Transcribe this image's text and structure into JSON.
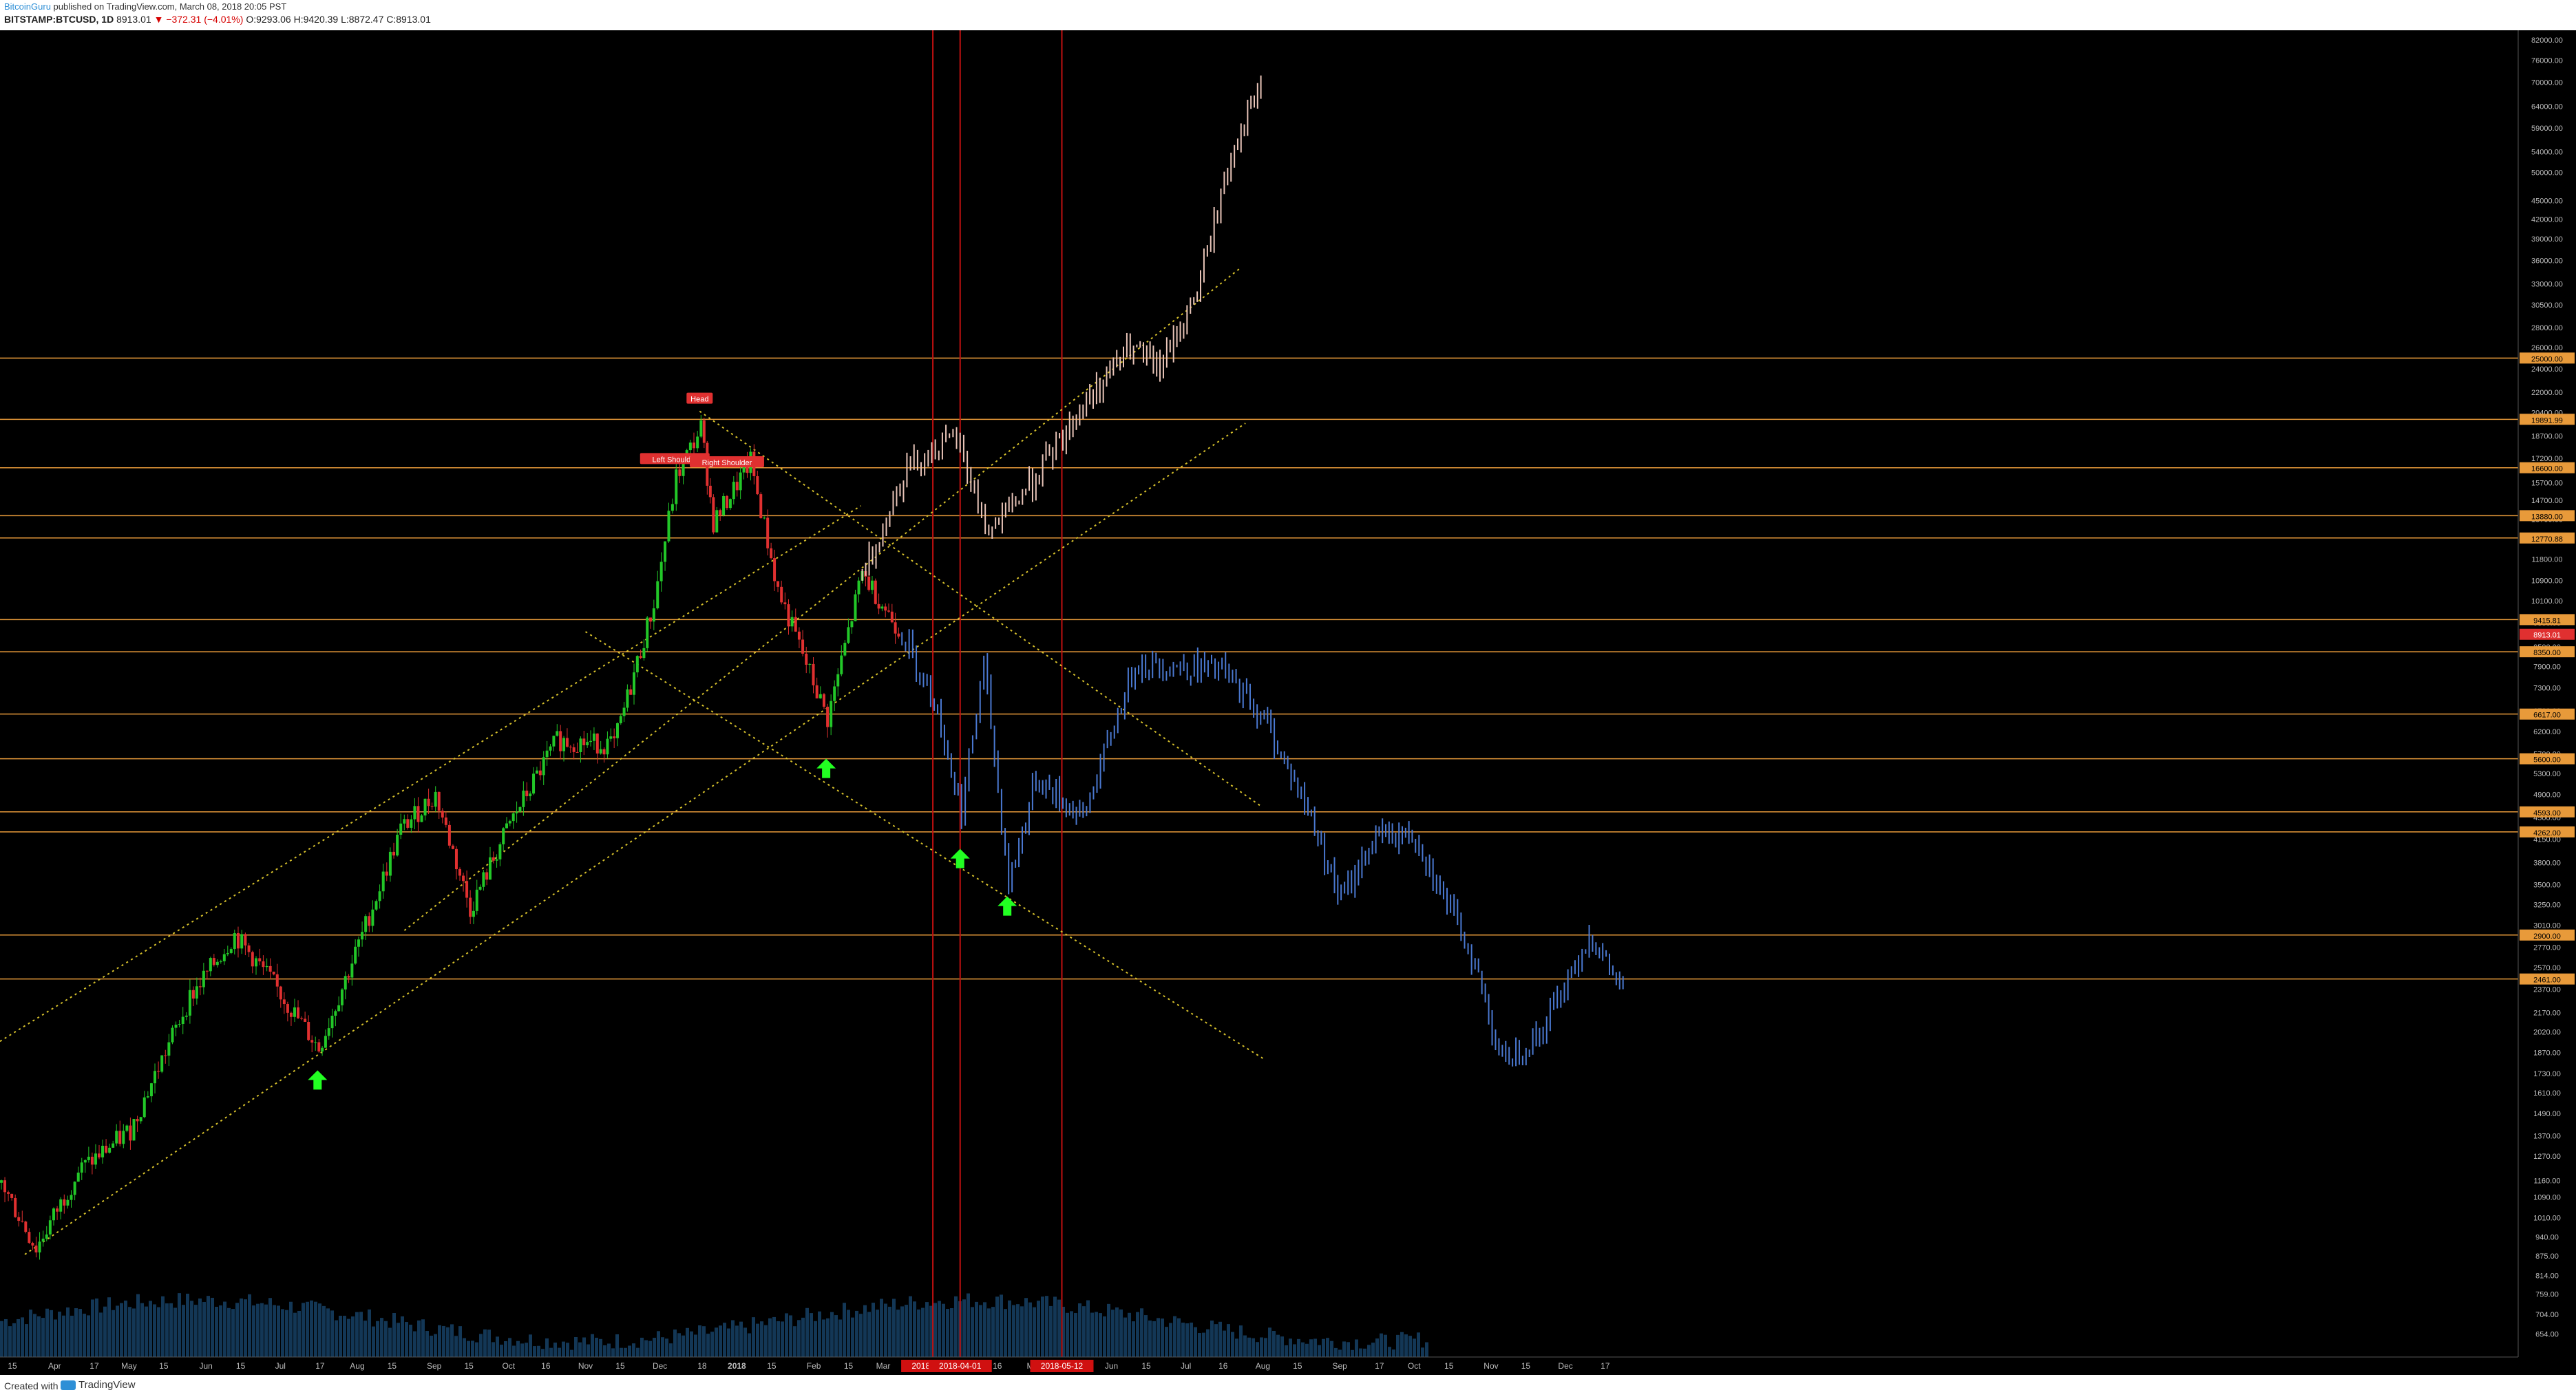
{
  "header": {
    "author": "BitcoinGuru",
    "published": " published on TradingView.com, March 08, 2018 20:05 PST",
    "symbol": "BITSTAMP:BTCUSD, 1D",
    "last": "8913.01",
    "change": "−372.31 (−4.01%)",
    "ohlc": "O:9293.06 H:9420.39 L:8872.47 C:8913.01"
  },
  "footer": {
    "created_with": "Created with",
    "brand": "TradingView"
  },
  "colors": {
    "up": "#22c728",
    "down": "#e03030",
    "projection_down": "#4a78d0",
    "projection_up": "#e8c4b8",
    "hline": "#e89a3a",
    "vline": "#c01010",
    "trend": "#d8c22c",
    "arrow": "#22ff22",
    "bands": "#2a8a7a",
    "ma": "#c82020",
    "volume": "#1b4f7a"
  },
  "chart_data": {
    "type": "line",
    "title": "BITSTAMP:BTCUSD, 1D",
    "yscale": "log",
    "ylim": [
      600,
      85000
    ],
    "xrange": [
      "2017-03-10",
      "2019-12-20"
    ],
    "x_ticks": [
      {
        "label": "15",
        "date": "2017-03-15"
      },
      {
        "label": "Apr",
        "date": "2017-04-01"
      },
      {
        "label": "17",
        "date": "2017-04-17"
      },
      {
        "label": "May",
        "date": "2017-05-01"
      },
      {
        "label": "15",
        "date": "2017-05-15"
      },
      {
        "label": "Jun",
        "date": "2017-06-01"
      },
      {
        "label": "15",
        "date": "2017-06-15"
      },
      {
        "label": "Jul",
        "date": "2017-07-01"
      },
      {
        "label": "17",
        "date": "2017-07-17"
      },
      {
        "label": "Aug",
        "date": "2017-08-01"
      },
      {
        "label": "15",
        "date": "2017-08-15"
      },
      {
        "label": "Sep",
        "date": "2017-09-01"
      },
      {
        "label": "15",
        "date": "2017-09-15"
      },
      {
        "label": "Oct",
        "date": "2017-10-01"
      },
      {
        "label": "16",
        "date": "2017-10-16"
      },
      {
        "label": "Nov",
        "date": "2017-11-01"
      },
      {
        "label": "15",
        "date": "2017-11-15"
      },
      {
        "label": "Dec",
        "date": "2017-12-01"
      },
      {
        "label": "18",
        "date": "2017-12-18"
      },
      {
        "label": "2018",
        "date": "2018-01-01"
      },
      {
        "label": "15",
        "date": "2018-01-15"
      },
      {
        "label": "Feb",
        "date": "2018-02-01"
      },
      {
        "label": "15",
        "date": "2018-02-15"
      },
      {
        "label": "Mar",
        "date": "2018-03-01"
      },
      {
        "label": "16",
        "date": "2018-04-16"
      },
      {
        "label": "May",
        "date": "2018-05-01"
      },
      {
        "label": "Jun",
        "date": "2018-06-01"
      },
      {
        "label": "15",
        "date": "2018-06-15"
      },
      {
        "label": "Jul",
        "date": "2018-07-01"
      },
      {
        "label": "16",
        "date": "2018-07-16"
      },
      {
        "label": "Aug",
        "date": "2018-08-01"
      },
      {
        "label": "15",
        "date": "2018-08-15"
      },
      {
        "label": "Sep",
        "date": "2018-09-01"
      },
      {
        "label": "17",
        "date": "2018-09-17"
      },
      {
        "label": "Oct",
        "date": "2018-10-01"
      },
      {
        "label": "15",
        "date": "2018-10-15"
      },
      {
        "label": "Nov",
        "date": "2018-11-01"
      },
      {
        "label": "15",
        "date": "2018-11-15"
      },
      {
        "label": "Dec",
        "date": "2018-12-01"
      },
      {
        "label": "17",
        "date": "2018-12-17"
      }
    ],
    "y_ticks": [
      82000,
      76000,
      70000,
      64000,
      59000,
      54000,
      50000,
      45000,
      42000,
      39000,
      36000,
      33000,
      30500,
      28000,
      26000,
      24000,
      22000,
      20400,
      18700,
      17200,
      15700,
      14700,
      13700,
      12700,
      11800,
      10900,
      10100,
      9300,
      8500,
      7900,
      7300,
      6700,
      6200,
      5700,
      5300,
      4900,
      4500,
      4150,
      3800,
      3500,
      3250,
      3010,
      2770,
      2570,
      2370,
      2170,
      2020,
      1870,
      1730,
      1610,
      1490,
      1370,
      1270,
      1160,
      1090,
      1010,
      940,
      875,
      814,
      759,
      704,
      654
    ],
    "hlines": [
      {
        "value": 25000,
        "label": "25000.00"
      },
      {
        "value": 19890,
        "label": "19891.99"
      },
      {
        "value": 16600,
        "label": "16600.00"
      },
      {
        "value": 13880,
        "label": "13880.00"
      },
      {
        "value": 12770,
        "label": "12770.88"
      },
      {
        "value": 9415,
        "label": "9415.81"
      },
      {
        "value": 8350,
        "label": "8350.00"
      },
      {
        "value": 6617,
        "label": "6617.00"
      },
      {
        "value": 5600,
        "label": "5600.00"
      },
      {
        "value": 4593,
        "label": "4593.00"
      },
      {
        "value": 4262,
        "label": "4262.00"
      },
      {
        "value": 2900,
        "label": "2900.00"
      },
      {
        "value": 2461,
        "label": "2461.00"
      }
    ],
    "last_price": {
      "value": 8913.01,
      "label": "8913.01"
    },
    "vlines": [
      {
        "date": "2018-03-21",
        "label": "2018-03-21"
      },
      {
        "date": "2018-04-01",
        "label": "2018-04-01"
      },
      {
        "date": "2018-05-12",
        "label": "2018-05-12"
      }
    ],
    "annotations": [
      {
        "text": "Head",
        "date": "2017-12-17",
        "value": 21300
      },
      {
        "text": "Left Shoulder",
        "date": "2017-12-07",
        "value": 17000
      },
      {
        "text": "Right Shoulder",
        "date": "2017-12-28",
        "value": 16800
      }
    ],
    "arrows": [
      {
        "date": "2017-07-16",
        "value": 1750
      },
      {
        "date": "2018-02-06",
        "value": 5600
      },
      {
        "date": "2018-04-01",
        "value": 4000
      },
      {
        "date": "2018-04-20",
        "value": 3350
      }
    ],
    "trendlines": [
      {
        "from": {
          "date": "2017-03-10",
          "value": 1950
        },
        "to": {
          "date": "2018-02-20",
          "value": 14400
        }
      },
      {
        "from": {
          "date": "2017-03-20",
          "value": 880
        },
        "to": {
          "date": "2018-07-25",
          "value": 19600
        }
      },
      {
        "from": {
          "date": "2017-08-20",
          "value": 2950
        },
        "to": {
          "date": "2018-07-23",
          "value": 35000
        }
      },
      {
        "from": {
          "date": "2017-12-17",
          "value": 20500
        },
        "to": {
          "date": "2018-07-31",
          "value": 4700
        }
      },
      {
        "from": {
          "date": "2017-11-01",
          "value": 9000
        },
        "to": {
          "date": "2018-08-01",
          "value": 1830
        }
      }
    ],
    "series": [
      {
        "style": "candles",
        "points": [
          {
            "date": "2017-03-10",
            "value": 1150
          },
          {
            "date": "2017-03-24",
            "value": 900
          },
          {
            "date": "2017-04-10",
            "value": 1200
          },
          {
            "date": "2017-05-01",
            "value": 1400
          },
          {
            "date": "2017-05-25",
            "value": 2300
          },
          {
            "date": "2017-06-12",
            "value": 2900
          },
          {
            "date": "2017-06-25",
            "value": 2500
          },
          {
            "date": "2017-07-16",
            "value": 1900
          },
          {
            "date": "2017-08-01",
            "value": 2800
          },
          {
            "date": "2017-08-18",
            "value": 4300
          },
          {
            "date": "2017-09-01",
            "value": 4900
          },
          {
            "date": "2017-09-15",
            "value": 3200
          },
          {
            "date": "2017-10-01",
            "value": 4400
          },
          {
            "date": "2017-10-20",
            "value": 6000
          },
          {
            "date": "2017-11-12",
            "value": 5900
          },
          {
            "date": "2017-11-28",
            "value": 10000
          },
          {
            "date": "2017-12-07",
            "value": 16000
          },
          {
            "date": "2017-12-17",
            "value": 19300
          },
          {
            "date": "2017-12-22",
            "value": 13500
          },
          {
            "date": "2018-01-06",
            "value": 17000
          },
          {
            "date": "2018-01-17",
            "value": 10500
          },
          {
            "date": "2018-02-06",
            "value": 6500
          },
          {
            "date": "2018-02-20",
            "value": 11200
          },
          {
            "date": "2018-03-08",
            "value": 8913
          }
        ]
      },
      {
        "style": "projection",
        "points": [
          {
            "date": "2018-03-08",
            "value": 8913
          },
          {
            "date": "2018-03-21",
            "value": 7000
          },
          {
            "date": "2018-04-01",
            "value": 4600
          },
          {
            "date": "2018-04-10",
            "value": 8000
          },
          {
            "date": "2018-04-20",
            "value": 3500
          },
          {
            "date": "2018-05-01",
            "value": 5200
          },
          {
            "date": "2018-05-20",
            "value": 4500
          },
          {
            "date": "2018-06-10",
            "value": 8000
          },
          {
            "date": "2018-07-15",
            "value": 7800
          },
          {
            "date": "2018-08-01",
            "value": 6500
          },
          {
            "date": "2018-08-20",
            "value": 4500
          },
          {
            "date": "2018-09-01",
            "value": 3300
          },
          {
            "date": "2018-09-15",
            "value": 4200
          },
          {
            "date": "2018-10-01",
            "value": 4200
          },
          {
            "date": "2018-10-25",
            "value": 2600
          },
          {
            "date": "2018-11-05",
            "value": 1800
          },
          {
            "date": "2018-11-20",
            "value": 2000
          },
          {
            "date": "2018-12-10",
            "value": 2900
          },
          {
            "date": "2018-12-25",
            "value": 2300
          }
        ]
      },
      {
        "style": "projection",
        "points": [
          {
            "date": "2018-02-20",
            "value": 11000
          },
          {
            "date": "2018-03-10",
            "value": 16800
          },
          {
            "date": "2018-03-30",
            "value": 18500
          },
          {
            "date": "2018-04-12",
            "value": 13000
          },
          {
            "date": "2018-05-01",
            "value": 16000
          },
          {
            "date": "2018-05-20",
            "value": 21000
          },
          {
            "date": "2018-06-08",
            "value": 26000
          },
          {
            "date": "2018-06-20",
            "value": 24000
          },
          {
            "date": "2018-07-05",
            "value": 32000
          },
          {
            "date": "2018-07-20",
            "value": 56000
          },
          {
            "date": "2018-08-01",
            "value": 70000
          }
        ]
      }
    ]
  }
}
